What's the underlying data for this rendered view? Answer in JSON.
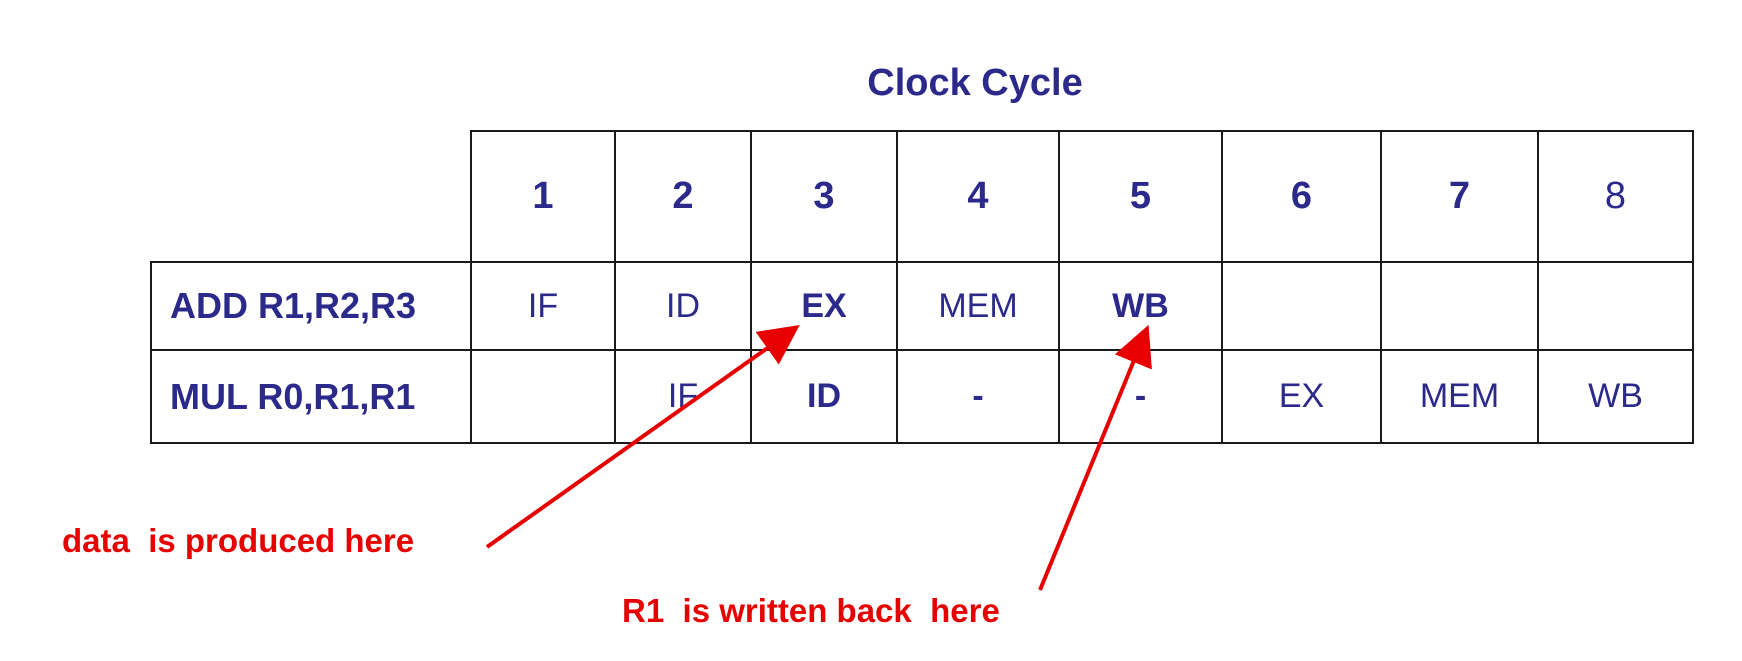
{
  "title": "Clock Cycle",
  "columns": [
    "1",
    "2",
    "3",
    "4",
    "5",
    "6",
    "7",
    "8"
  ],
  "rows": [
    {
      "instruction": "ADD R1,R2,R3",
      "cells": [
        "IF",
        "ID",
        "EX",
        "MEM",
        "WB",
        "",
        "",
        ""
      ]
    },
    {
      "instruction": "MUL R0,R1,R1",
      "cells": [
        "",
        "IF",
        "ID",
        "-",
        "-",
        "EX",
        "MEM",
        "WB"
      ]
    }
  ],
  "annotations": {
    "produced": "data  is produced here",
    "written_back": "R1  is written back  here"
  },
  "colors": {
    "text": "#2b2a8a",
    "annotation": "#e60000",
    "grid": "#1a1a1a"
  }
}
